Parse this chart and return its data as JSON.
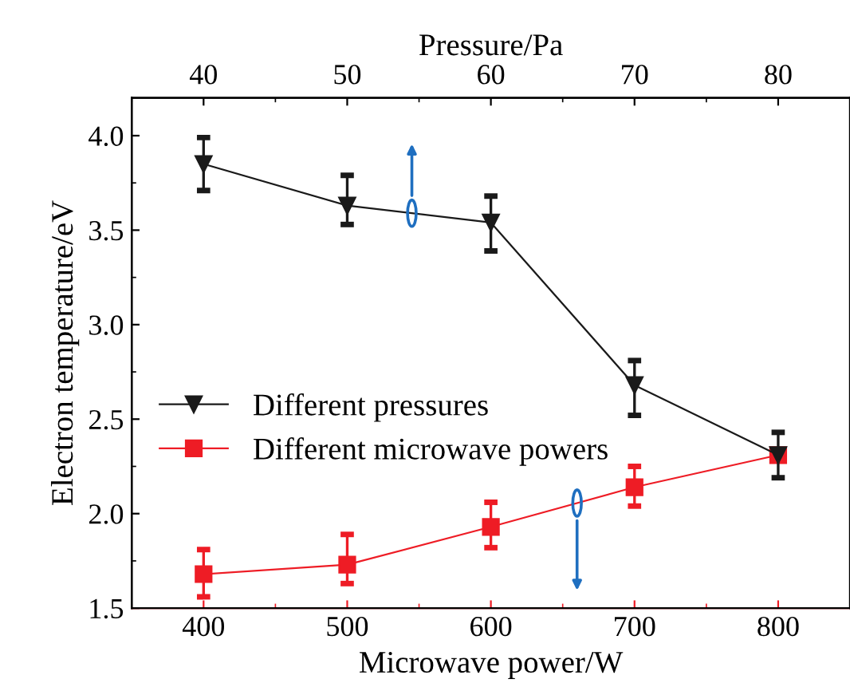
{
  "chart_data": {
    "type": "line",
    "xlabel": "Microwave power/W",
    "x2label": "Pressure/Pa",
    "ylabel": "Electron temperature/eV",
    "xlim": [
      350,
      850
    ],
    "xticks": [
      400,
      500,
      600,
      700,
      800
    ],
    "x2lim": [
      35,
      85
    ],
    "x2ticks": [
      40,
      50,
      60,
      70,
      80
    ],
    "ylim": [
      1.5,
      4.2
    ],
    "yticks": [
      1.5,
      {
        "value": 2,
        "label": "2.0"
      },
      2.5,
      {
        "value": 3,
        "label": "3.0"
      },
      3.5,
      {
        "value": 4,
        "label": "4.0"
      }
    ],
    "legend": "center left",
    "grid": false,
    "line_style": "solid",
    "series": [
      {
        "name": "Different pressures",
        "color": "#1a1a1a",
        "marker": "triangle",
        "axis": "x2",
        "x": [
          40,
          50,
          60,
          70,
          80
        ],
        "values": [
          3.85,
          3.63,
          3.54,
          2.68,
          2.31
        ],
        "errors": [
          [
            3.71,
            3.99
          ],
          [
            3.53,
            3.79
          ],
          [
            3.39,
            3.68
          ],
          [
            2.52,
            2.81
          ],
          [
            2.19,
            2.43
          ]
        ]
      },
      {
        "name": "Different microwave powers",
        "color": "#ee1c25",
        "marker": "square",
        "x": [
          400,
          500,
          600,
          700,
          800
        ],
        "values": [
          1.68,
          1.73,
          1.93,
          2.14,
          2.31
        ],
        "errors": [
          [
            1.56,
            1.81
          ],
          [
            1.63,
            1.89
          ],
          [
            1.82,
            2.06
          ],
          [
            2.04,
            2.25
          ],
          null
        ]
      }
    ]
  }
}
